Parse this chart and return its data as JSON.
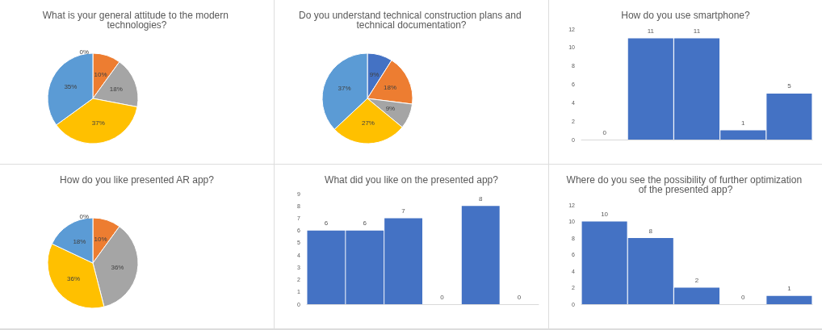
{
  "chart_data": [
    {
      "type": "pie",
      "title": "What is your general attitude to the modern technologies?",
      "categories": [
        null,
        null,
        null,
        null,
        null
      ],
      "values": [
        0,
        10,
        18,
        37,
        35
      ],
      "colors": [
        "#4472c4",
        "#ed7d31",
        "#a5a5a5",
        "#ffc000",
        "#5b9bd5"
      ],
      "value_labels": [
        "0%",
        "10%",
        "18%",
        "37%",
        "35%"
      ]
    },
    {
      "type": "pie",
      "title": "Do you understand technical construction plans and technical documentation?",
      "categories": [
        null,
        null,
        null,
        null,
        null
      ],
      "values": [
        9,
        18,
        9,
        27,
        37
      ],
      "colors": [
        "#4472c4",
        "#ed7d31",
        "#a5a5a5",
        "#ffc000",
        "#5b9bd5"
      ],
      "value_labels": [
        "9%",
        "18%",
        "9%",
        "27%",
        "37%"
      ]
    },
    {
      "type": "bar",
      "title": "How do you use smartphone?",
      "categories": [
        null,
        null,
        null,
        null,
        null
      ],
      "values": [
        0,
        11,
        11,
        1,
        5
      ],
      "color": "#4472c4",
      "ylim": [
        0,
        12
      ],
      "yticks": [
        0,
        2,
        4,
        6,
        8,
        10,
        12
      ],
      "data_labels": true,
      "grid": false
    },
    {
      "type": "pie",
      "title": "How do you like presented AR app?",
      "categories": [
        null,
        null,
        null,
        null,
        null
      ],
      "values": [
        0,
        10,
        36,
        36,
        18
      ],
      "colors": [
        "#4472c4",
        "#ed7d31",
        "#a5a5a5",
        "#ffc000",
        "#5b9bd5"
      ],
      "value_labels": [
        "0%",
        "10%",
        "36%",
        "36%",
        "18%"
      ]
    },
    {
      "type": "bar",
      "title": "What did you like on the presented app?",
      "categories": [
        null,
        null,
        null,
        null,
        null,
        null
      ],
      "values": [
        6,
        6,
        7,
        0,
        8,
        0
      ],
      "color": "#4472c4",
      "ylim": [
        0,
        9
      ],
      "yticks": [
        0,
        1,
        2,
        3,
        4,
        5,
        6,
        7,
        8,
        9
      ],
      "data_labels": true,
      "grid": false
    },
    {
      "type": "bar",
      "title": "Where do you see the possibility of further optimization of the presented app?",
      "categories": [
        null,
        null,
        null,
        null,
        null
      ],
      "values": [
        10,
        8,
        2,
        0,
        1
      ],
      "color": "#4472c4",
      "ylim": [
        0,
        12
      ],
      "yticks": [
        0,
        2,
        4,
        6,
        8,
        10,
        12
      ],
      "data_labels": true,
      "grid": false
    }
  ]
}
